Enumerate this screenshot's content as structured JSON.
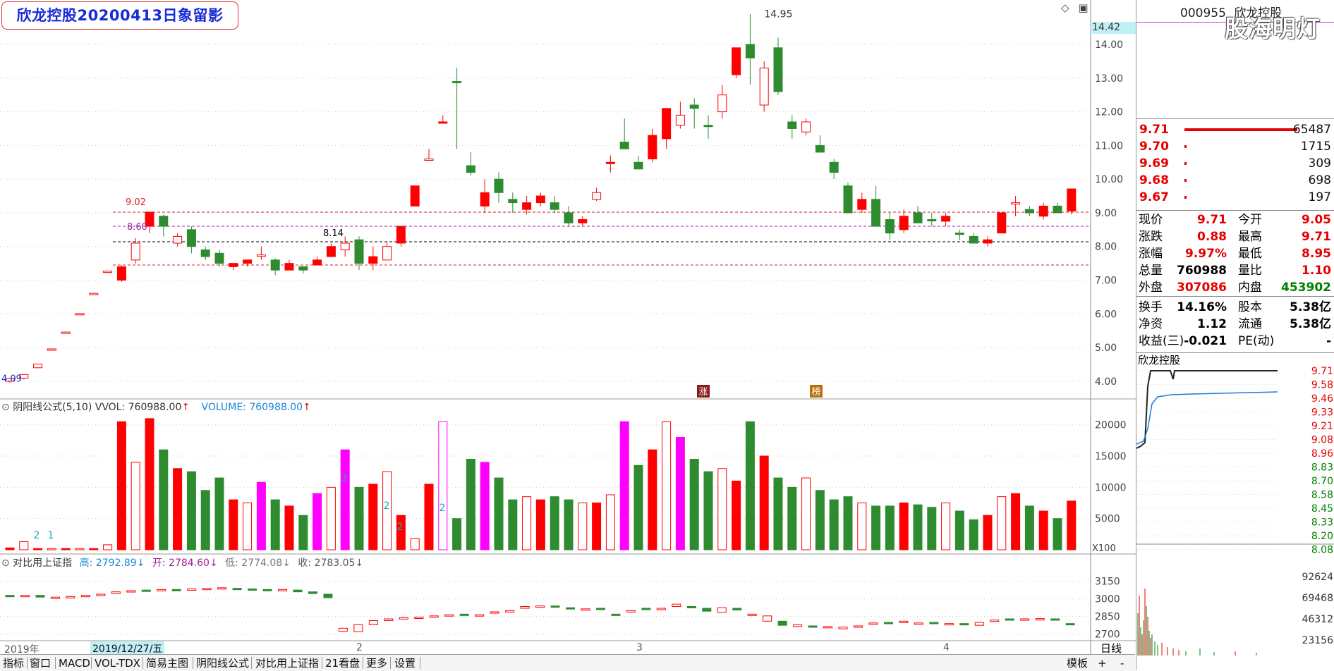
{
  "header": {
    "title": "欣龙控股20200413日象留影",
    "current_price_badge": "14.42"
  },
  "main_chart": {
    "y_axis": [
      "14.00",
      "13.00",
      "12.00",
      "11.00",
      "10.00",
      "9.00",
      "8.00",
      "7.00",
      "6.00",
      "5.00",
      "4.00"
    ],
    "annotations": {
      "high": "14.95",
      "left_high": "9.02",
      "left_mark": "8.60",
      "mid_mark": "8.14",
      "start_low": "4.09"
    },
    "marker_zhang": "涨",
    "marker_bang": "榜"
  },
  "volume_panel": {
    "indicator": "阴阳线公式(5,10)",
    "vvol": "VVOL: 760988.00",
    "volume": "VOLUME: 760988.00",
    "arrow": "↑",
    "y_axis": [
      "20000",
      "15000",
      "10000",
      "5000"
    ],
    "multiplier": "X100",
    "bar_counts": [
      "2",
      "1",
      "3",
      "2",
      "2",
      "2"
    ]
  },
  "index_panel": {
    "name": "对比用上证指",
    "high": "高: 2792.89",
    "open": "开: 2784.60",
    "low": "低: 2774.08",
    "close": "收: 2783.05",
    "arrow": "↓",
    "y_axis": [
      "3150",
      "3000",
      "2850",
      "2700"
    ]
  },
  "date_axis": {
    "year": "2019年",
    "cursor_date": "2019/12/27/五",
    "months": [
      "2",
      "3",
      "4"
    ]
  },
  "tabs": [
    "指标",
    "窗口",
    "MACD",
    "VOL-TDX",
    "简易主图",
    "阴阳线公式",
    "对比用上证指",
    "21看盘",
    "更多",
    "设置"
  ],
  "tabs_right": [
    "模板",
    "+",
    "-"
  ],
  "period": "日线",
  "colors": {
    "up": "#ff0000",
    "down": "#2e8b30",
    "magenta": "#ff00ff",
    "teal": "#007a7a"
  },
  "quote": {
    "code": "000955",
    "name": "欣龙控股",
    "watermark": "股海明灯",
    "orders": [
      {
        "price": "9.71",
        "volume": "65487"
      },
      {
        "price": "9.70",
        "volume": "1715"
      },
      {
        "price": "9.69",
        "volume": "309"
      },
      {
        "price": "9.68",
        "volume": "698"
      },
      {
        "price": "9.67",
        "volume": "197"
      }
    ],
    "stats": [
      {
        "l1": "现价",
        "v1": "9.71",
        "l2": "今开",
        "v2": "9.05"
      },
      {
        "l1": "涨跌",
        "v1": "0.88",
        "l2": "最高",
        "v2": "9.71"
      },
      {
        "l1": "涨幅",
        "v1": "9.97%",
        "l2": "最低",
        "v2": "8.95"
      },
      {
        "l1": "总量",
        "v1": "760988",
        "l2": "量比",
        "v2": "1.10"
      },
      {
        "l1": "外盘",
        "v1": "307086",
        "l2": "内盘",
        "v2": "453902"
      }
    ],
    "stats2": [
      {
        "l1": "换手",
        "v1": "14.16%",
        "l2": "股本",
        "v2": "5.38亿"
      },
      {
        "l1": "净资",
        "v1": "1.12",
        "l2": "流通",
        "v2": "5.38亿"
      },
      {
        "l1": "收益(三)",
        "v1": "-0.021",
        "l2": "PE(动)",
        "v2": "-"
      }
    ],
    "intraday_title": "欣龙控股",
    "intraday_axis": [
      "9.71",
      "9.58",
      "9.46",
      "9.33",
      "9.21",
      "9.08",
      "8.96",
      "8.83",
      "8.70",
      "8.58",
      "8.45",
      "8.33",
      "8.20",
      "8.08"
    ],
    "intraday_vol_axis": [
      "92624",
      "69468",
      "46312",
      "23156"
    ]
  },
  "chart_data": {
    "type": "candlestick",
    "price_ylim": [
      3.6,
      14.9
    ],
    "volume_ylim": [
      0,
      22000
    ],
    "index_ylim": [
      2650,
      3250
    ],
    "candles": [
      [
        4.0,
        4.09,
        3.95,
        4.09,
        "u",
        300
      ],
      [
        4.09,
        4.2,
        4.05,
        4.2,
        "u",
        1300
      ],
      [
        4.4,
        4.51,
        4.4,
        4.51,
        "u",
        200
      ],
      [
        4.96,
        4.96,
        4.96,
        4.96,
        "u",
        200
      ],
      [
        5.46,
        5.46,
        5.46,
        5.46,
        "u",
        200
      ],
      [
        6.01,
        6.01,
        6.01,
        6.01,
        "u",
        200
      ],
      [
        6.61,
        6.61,
        6.61,
        6.61,
        "u",
        200
      ],
      [
        7.27,
        7.27,
        7.27,
        7.27,
        "u",
        800
      ],
      [
        7.0,
        7.44,
        6.95,
        7.4,
        "u",
        20500
      ],
      [
        7.6,
        8.25,
        7.5,
        8.1,
        "u",
        14000
      ],
      [
        8.6,
        9.02,
        8.4,
        9.02,
        "u",
        21000
      ],
      [
        8.9,
        8.95,
        8.3,
        8.6,
        "d",
        16000
      ],
      [
        8.3,
        8.4,
        8.0,
        8.1,
        "u",
        13000
      ],
      [
        8.5,
        8.6,
        7.8,
        8.0,
        "d",
        12500
      ],
      [
        7.9,
        8.0,
        7.6,
        7.7,
        "d",
        9500
      ],
      [
        7.8,
        7.9,
        7.4,
        7.5,
        "d",
        11500
      ],
      [
        7.4,
        7.5,
        7.3,
        7.5,
        "u",
        8000
      ],
      [
        7.5,
        7.6,
        7.4,
        7.6,
        "u",
        7500
      ],
      [
        7.75,
        8.0,
        7.6,
        7.75,
        "u",
        10800
      ],
      [
        7.6,
        7.65,
        7.15,
        7.3,
        "d",
        8000
      ],
      [
        7.3,
        7.6,
        7.3,
        7.5,
        "u",
        7000
      ],
      [
        7.3,
        7.4,
        7.2,
        7.4,
        "d",
        5500
      ],
      [
        7.6,
        7.7,
        7.45,
        7.45,
        "u",
        9000
      ],
      [
        8.0,
        8.1,
        7.7,
        7.7,
        "u",
        10000
      ],
      [
        7.9,
        8.3,
        7.7,
        8.1,
        "u",
        16000
      ],
      [
        8.2,
        8.3,
        7.3,
        7.5,
        "d",
        10000
      ],
      [
        7.5,
        8.0,
        7.3,
        7.7,
        "u",
        10500
      ],
      [
        8.0,
        8.15,
        7.6,
        7.6,
        "u",
        12500
      ],
      [
        8.1,
        8.6,
        8.0,
        8.6,
        "u",
        5500
      ],
      [
        9.2,
        9.8,
        9.2,
        9.8,
        "u",
        1800
      ],
      [
        10.6,
        10.9,
        10.6,
        10.6,
        "u",
        10500
      ],
      [
        11.7,
        11.9,
        11.7,
        11.7,
        "u",
        20500
      ],
      [
        12.9,
        13.3,
        10.9,
        12.9,
        "d",
        5000
      ],
      [
        10.2,
        10.8,
        10.1,
        10.4,
        "d",
        14500
      ],
      [
        9.2,
        10.0,
        9.0,
        9.6,
        "u",
        14000
      ],
      [
        10.0,
        10.2,
        9.3,
        9.6,
        "d",
        11500
      ],
      [
        9.4,
        9.6,
        9.0,
        9.3,
        "d",
        8000
      ],
      [
        9.1,
        9.5,
        8.95,
        9.3,
        "u",
        8500
      ],
      [
        9.3,
        9.6,
        9.2,
        9.5,
        "u",
        8000
      ],
      [
        9.3,
        9.5,
        9.0,
        9.1,
        "d",
        8500
      ],
      [
        9.0,
        9.2,
        8.6,
        8.7,
        "d",
        8000
      ],
      [
        8.7,
        8.9,
        8.6,
        8.8,
        "u",
        7500
      ],
      [
        9.6,
        9.75,
        9.35,
        9.4,
        "u",
        7500
      ],
      [
        10.5,
        10.7,
        10.2,
        10.5,
        "u",
        8800
      ],
      [
        11.1,
        11.8,
        10.9,
        10.9,
        "d",
        20500
      ],
      [
        10.5,
        10.7,
        10.3,
        10.3,
        "d",
        13500
      ],
      [
        10.6,
        11.5,
        10.5,
        11.3,
        "u",
        16000
      ],
      [
        11.2,
        12.0,
        10.9,
        12.1,
        "u",
        20500
      ],
      [
        11.6,
        12.3,
        11.5,
        11.9,
        "u",
        18000
      ],
      [
        12.2,
        12.4,
        11.5,
        12.1,
        "d",
        14500
      ],
      [
        11.6,
        11.9,
        11.2,
        11.6,
        "d",
        12500
      ],
      [
        12.0,
        12.8,
        11.8,
        12.5,
        "u",
        13000
      ],
      [
        13.1,
        13.9,
        13.0,
        13.9,
        "u",
        11000
      ],
      [
        14.0,
        14.9,
        12.8,
        13.6,
        "d",
        20500
      ],
      [
        12.2,
        13.5,
        12.0,
        13.3,
        "u",
        15000
      ],
      [
        13.9,
        14.2,
        12.5,
        12.6,
        "d",
        11500
      ],
      [
        11.5,
        11.9,
        11.2,
        11.7,
        "d",
        10000
      ],
      [
        11.4,
        11.8,
        11.3,
        11.7,
        "u",
        11500
      ],
      [
        11.0,
        11.3,
        10.8,
        10.8,
        "d",
        9500
      ],
      [
        10.5,
        10.6,
        10.0,
        10.2,
        "d",
        8000
      ],
      [
        9.8,
        9.9,
        9.0,
        9.0,
        "d",
        8500
      ],
      [
        9.1,
        9.6,
        9.0,
        9.4,
        "u",
        7500
      ],
      [
        9.4,
        9.8,
        8.6,
        8.6,
        "d",
        7000
      ],
      [
        8.8,
        9.0,
        8.2,
        8.4,
        "d",
        7000
      ],
      [
        8.5,
        9.1,
        8.4,
        8.9,
        "u",
        7500
      ],
      [
        9.0,
        9.2,
        8.8,
        8.7,
        "d",
        7200
      ],
      [
        8.8,
        9.0,
        8.6,
        8.8,
        "d",
        6800
      ],
      [
        8.75,
        9.0,
        8.6,
        8.9,
        "u",
        7500
      ],
      [
        8.4,
        8.5,
        8.2,
        8.4,
        "d",
        6200
      ],
      [
        8.3,
        8.4,
        8.1,
        8.1,
        "d",
        4800
      ],
      [
        8.1,
        8.3,
        8.0,
        8.2,
        "u",
        5500
      ],
      [
        8.4,
        9.0,
        8.4,
        9.0,
        "u",
        8500
      ],
      [
        9.3,
        9.5,
        8.9,
        9.3,
        "u",
        9000
      ],
      [
        9.1,
        9.2,
        8.9,
        9.0,
        "d",
        7000
      ],
      [
        8.9,
        9.3,
        8.8,
        9.2,
        "u",
        6200
      ],
      [
        9.2,
        9.3,
        9.0,
        9.0,
        "d",
        5000
      ],
      [
        9.05,
        9.71,
        8.95,
        9.71,
        "u",
        7800
      ]
    ],
    "index_candles": [
      [
        3030,
        3030,
        3030,
        "d"
      ],
      [
        3030,
        3030,
        3030,
        "u"
      ],
      [
        3030,
        3030,
        3015,
        "d"
      ],
      [
        3012,
        3015,
        3015,
        "u"
      ],
      [
        3015,
        3020,
        3020,
        "u"
      ],
      [
        3020,
        3030,
        3030,
        "u"
      ],
      [
        3030,
        3040,
        3040,
        "u"
      ],
      [
        3045,
        3060,
        3060,
        "u"
      ],
      [
        3070,
        3075,
        3070,
        "u"
      ],
      [
        3075,
        3075,
        3070,
        "d"
      ],
      [
        3070,
        3080,
        3080,
        "u"
      ],
      [
        3080,
        3080,
        3075,
        "d"
      ],
      [
        3075,
        3085,
        3085,
        "u"
      ],
      [
        3085,
        3090,
        3090,
        "u"
      ],
      [
        3090,
        3095,
        3095,
        "u"
      ],
      [
        3090,
        3090,
        3085,
        "d"
      ],
      [
        3085,
        3085,
        3080,
        "d"
      ],
      [
        3080,
        3080,
        3075,
        "d"
      ],
      [
        3075,
        3080,
        3080,
        "u"
      ],
      [
        3075,
        3075,
        3060,
        "d"
      ],
      [
        3060,
        3060,
        3045,
        "d"
      ],
      [
        3040,
        3040,
        3010,
        "d"
      ],
      [
        2750,
        2750,
        2725,
        "u"
      ],
      [
        2720,
        2720,
        2780,
        "u"
      ],
      [
        2780,
        2780,
        2815,
        "u"
      ],
      [
        2815,
        2815,
        2830,
        "u"
      ],
      [
        2830,
        2830,
        2840,
        "u"
      ],
      [
        2840,
        2845,
        2845,
        "u"
      ],
      [
        2850,
        2855,
        2855,
        "u"
      ],
      [
        2860,
        2865,
        2865,
        "u"
      ],
      [
        2870,
        2870,
        2860,
        "d"
      ],
      [
        2860,
        2860,
        2865,
        "u"
      ],
      [
        2880,
        2890,
        2890,
        "u"
      ],
      [
        2890,
        2900,
        2900,
        "u"
      ],
      [
        2920,
        2935,
        2935,
        "u"
      ],
      [
        2935,
        2940,
        2940,
        "u"
      ],
      [
        2940,
        2935,
        2935,
        "d"
      ],
      [
        2925,
        2925,
        2915,
        "d"
      ],
      [
        2910,
        2915,
        2915,
        "u"
      ],
      [
        2920,
        2920,
        2915,
        "d"
      ],
      [
        2870,
        2870,
        2860,
        "d"
      ],
      [
        2890,
        2900,
        2900,
        "u"
      ],
      [
        2920,
        2920,
        2915,
        "d"
      ],
      [
        2910,
        2920,
        2920,
        "u"
      ],
      [
        2935,
        2955,
        2955,
        "u"
      ],
      [
        2935,
        2935,
        2935,
        "d"
      ],
      [
        2920,
        2920,
        2895,
        "d"
      ],
      [
        2885,
        2885,
        2925,
        "u"
      ],
      [
        2920,
        2920,
        2905,
        "d"
      ],
      [
        2870,
        2870,
        2860,
        "u"
      ],
      [
        2855,
        2855,
        2810,
        "u"
      ],
      [
        2810,
        2810,
        2775,
        "d"
      ],
      [
        2765,
        2765,
        2780,
        "u"
      ],
      [
        2770,
        2770,
        2760,
        "d"
      ],
      [
        2755,
        2755,
        2765,
        "u"
      ],
      [
        2745,
        2745,
        2760,
        "u"
      ],
      [
        2760,
        2760,
        2770,
        "u"
      ],
      [
        2790,
        2790,
        2795,
        "u"
      ],
      [
        2800,
        2800,
        2795,
        "d"
      ],
      [
        2800,
        2800,
        2810,
        "u"
      ],
      [
        2790,
        2790,
        2795,
        "u"
      ],
      [
        2800,
        2800,
        2790,
        "d"
      ],
      [
        2780,
        2780,
        2790,
        "u"
      ],
      [
        2790,
        2790,
        2780,
        "d"
      ],
      [
        2775,
        2775,
        2800,
        "u"
      ],
      [
        2810,
        2810,
        2820,
        "u"
      ],
      [
        2830,
        2830,
        2825,
        "d"
      ],
      [
        2825,
        2825,
        2830,
        "u"
      ],
      [
        2830,
        2830,
        2832,
        "u"
      ],
      [
        2830,
        2830,
        2820,
        "d"
      ],
      [
        2790,
        2790,
        2783,
        "d"
      ]
    ]
  }
}
